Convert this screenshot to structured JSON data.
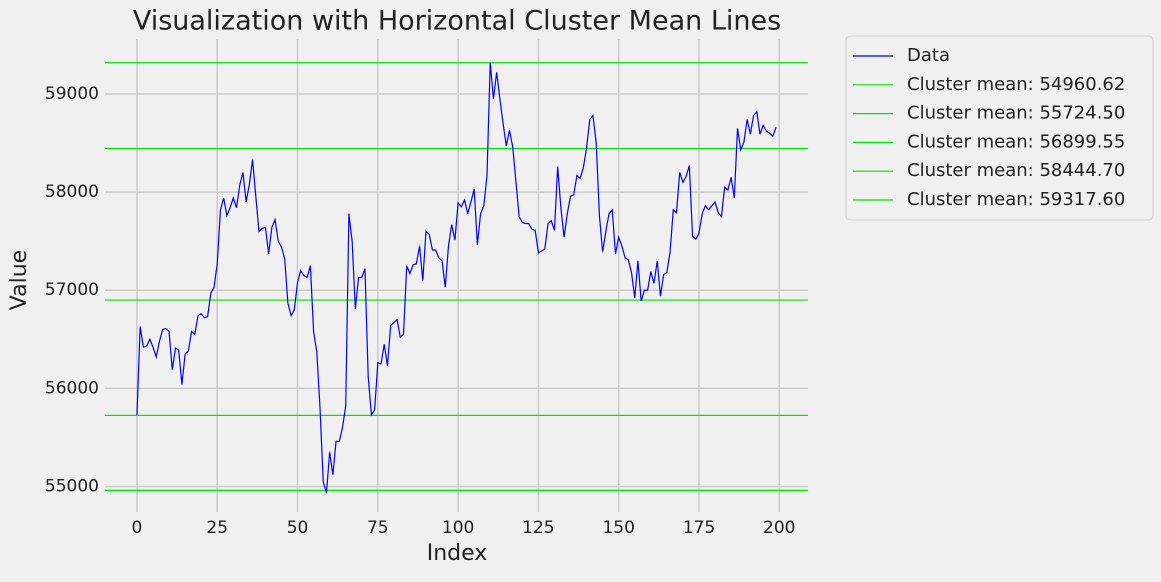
{
  "chart_data": {
    "type": "line",
    "title": "Visualization with Horizontal Cluster Mean Lines",
    "xlabel": "Index",
    "ylabel": "Value",
    "x": [
      0,
      1,
      2,
      3,
      4,
      5,
      6,
      7,
      8,
      9,
      10,
      11,
      12,
      13,
      14,
      15,
      16,
      17,
      18,
      19,
      20,
      21,
      22,
      23,
      24,
      25,
      26,
      27,
      28,
      29,
      30,
      31,
      32,
      33,
      34,
      35,
      36,
      37,
      38,
      39,
      40,
      41,
      42,
      43,
      44,
      45,
      46,
      47,
      48,
      49,
      50,
      51,
      52,
      53,
      54,
      55,
      56,
      57,
      58,
      59,
      60,
      61,
      62,
      63,
      64,
      65,
      66,
      67,
      68,
      69,
      70,
      71,
      72,
      73,
      74,
      75,
      76,
      77,
      78,
      79,
      80,
      81,
      82,
      83,
      84,
      85,
      86,
      87,
      88,
      89,
      90,
      91,
      92,
      93,
      94,
      95,
      96,
      97,
      98,
      99,
      100,
      101,
      102,
      103,
      104,
      105,
      106,
      107,
      108,
      109,
      110,
      111,
      112,
      113,
      114,
      115,
      116,
      117,
      118,
      119,
      120,
      121,
      122,
      123,
      124,
      125,
      126,
      127,
      128,
      129,
      130,
      131,
      132,
      133,
      134,
      135,
      136,
      137,
      138,
      139,
      140,
      141,
      142,
      143,
      144,
      145,
      146,
      147,
      148,
      149,
      150,
      151,
      152,
      153,
      154,
      155,
      156,
      157,
      158,
      159,
      160,
      161,
      162,
      163,
      164,
      165,
      166,
      167,
      168,
      169,
      170,
      171,
      172,
      173,
      174,
      175,
      176,
      177,
      178,
      179,
      180,
      181,
      182,
      183,
      184,
      185,
      186,
      187,
      188,
      189,
      190,
      191,
      192,
      193,
      194,
      195,
      196,
      197,
      198,
      199
    ],
    "series": [
      {
        "name": "Data",
        "color": "#0000ff",
        "values": [
          55730,
          56630,
          56420,
          56430,
          56500,
          56420,
          56320,
          56480,
          56600,
          56610,
          56580,
          56190,
          56410,
          56390,
          56040,
          56350,
          56380,
          56580,
          56550,
          56740,
          56760,
          56720,
          56730,
          56970,
          57030,
          57270,
          57820,
          57940,
          57760,
          57840,
          57940,
          57840,
          58070,
          58200,
          57900,
          58080,
          58330,
          57960,
          57600,
          57630,
          57640,
          57370,
          57640,
          57720,
          57500,
          57440,
          57320,
          56870,
          56740,
          56800,
          57080,
          57200,
          57150,
          57130,
          57250,
          56580,
          56370,
          55800,
          55050,
          54930,
          55350,
          55120,
          55460,
          55460,
          55600,
          55820,
          57780,
          57500,
          56810,
          57130,
          57130,
          57220,
          56120,
          55730,
          55780,
          56260,
          56250,
          56450,
          56230,
          56640,
          56670,
          56700,
          56520,
          56550,
          57250,
          57170,
          57260,
          57270,
          57450,
          57100,
          57600,
          57570,
          57410,
          57410,
          57330,
          57300,
          57030,
          57450,
          57670,
          57510,
          57890,
          57850,
          57920,
          57780,
          57900,
          58030,
          57460,
          57780,
          57860,
          58170,
          59320,
          58950,
          59220,
          58950,
          58700,
          58470,
          58630,
          58460,
          58110,
          57750,
          57690,
          57680,
          57680,
          57620,
          57610,
          57380,
          57400,
          57420,
          57680,
          57710,
          57610,
          58260,
          57840,
          57540,
          57780,
          57960,
          57970,
          58170,
          58140,
          58250,
          58450,
          58740,
          58780,
          58500,
          57760,
          57390,
          57600,
          57780,
          57820,
          57370,
          57540,
          57450,
          57330,
          57310,
          57180,
          56920,
          57300,
          56890,
          57000,
          57000,
          57190,
          57070,
          57300,
          56940,
          57160,
          57180,
          57390,
          57820,
          57790,
          58200,
          58100,
          58160,
          58270,
          57550,
          57520,
          57580,
          57780,
          57860,
          57820,
          57860,
          57900,
          57790,
          57750,
          58050,
          58020,
          58150,
          57940,
          58650,
          58430,
          58510,
          58740,
          58590,
          58780,
          58820,
          58590,
          58680,
          58620,
          58600,
          58570,
          58660
        ]
      }
    ],
    "hlines": [
      {
        "name": "Cluster mean: 54960.62",
        "value": 54960.62,
        "color": "#00e600"
      },
      {
        "name": "Cluster mean: 55724.50",
        "value": 55724.5,
        "color": "#00e600"
      },
      {
        "name": "Cluster mean: 56899.55",
        "value": 56899.55,
        "color": "#00e600"
      },
      {
        "name": "Cluster mean: 58444.70",
        "value": 58444.7,
        "color": "#00e600"
      },
      {
        "name": "Cluster mean: 59317.60",
        "value": 59317.6,
        "color": "#00e600"
      }
    ],
    "xlim": [
      -9.95,
      208.95
    ],
    "xticks": [
      0,
      25,
      50,
      75,
      100,
      125,
      150,
      175,
      200
    ],
    "ylim": [
      54740,
      59560
    ],
    "yticks": [
      55000,
      56000,
      57000,
      58000,
      59000
    ],
    "grid": true,
    "legend": "outside-upper-right"
  }
}
